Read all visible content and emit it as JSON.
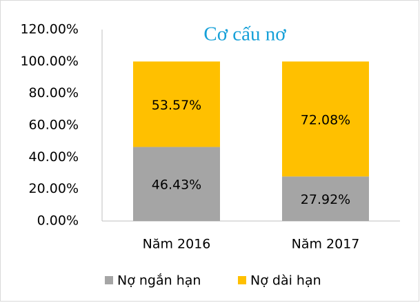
{
  "chart_data": {
    "type": "stacked_bar",
    "title": "Cơ cấu nơ",
    "categories": [
      "Năm 2016",
      "Năm 2017"
    ],
    "series": [
      {
        "name": "Nợ ngắn hạn",
        "color": "#a5a5a5",
        "values": [
          46.43,
          27.92
        ],
        "value_labels": [
          "46.43%",
          "27.92%"
        ]
      },
      {
        "name": "Nợ dài hạn",
        "color": "#ffc000",
        "values": [
          53.57,
          72.08
        ],
        "value_labels": [
          "53.57%",
          "72.08%"
        ]
      }
    ],
    "ylim": [
      0,
      120
    ],
    "yticks": [
      {
        "value": 0,
        "label": "0.00%"
      },
      {
        "value": 20,
        "label": "20.00%"
      },
      {
        "value": 40,
        "label": "40.00%"
      },
      {
        "value": 60,
        "label": "60.00%"
      },
      {
        "value": 80,
        "label": "80.00%"
      },
      {
        "value": 100,
        "label": "100.00%"
      },
      {
        "value": 120,
        "label": "120.00%"
      }
    ],
    "grid": false,
    "legend": "bottom"
  }
}
